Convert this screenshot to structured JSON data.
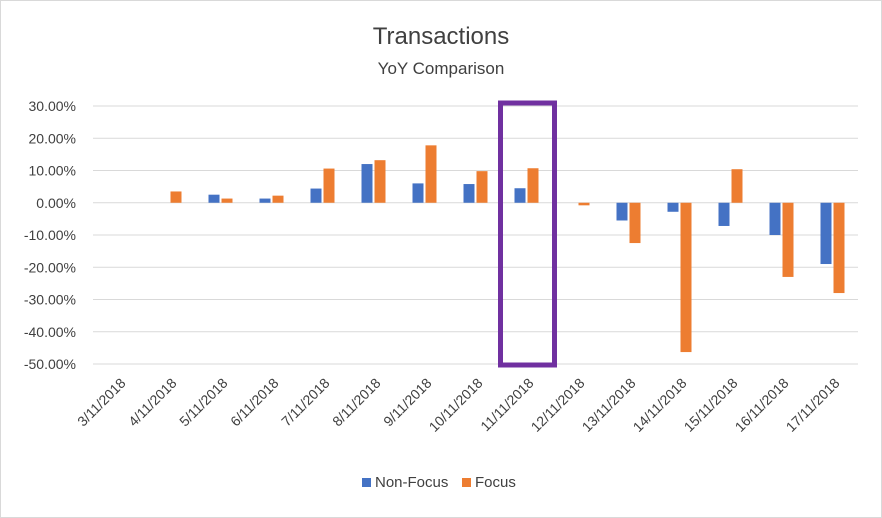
{
  "chart_data": {
    "type": "bar",
    "title": "Transactions",
    "subtitle": "YoY Comparison",
    "categories": [
      "3/11/2018",
      "4/11/2018",
      "5/11/2018",
      "6/11/2018",
      "7/11/2018",
      "8/11/2018",
      "9/11/2018",
      "10/11/2018",
      "11/11/2018",
      "12/11/2018",
      "13/11/2018",
      "14/11/2018",
      "15/11/2018",
      "16/11/2018",
      "17/11/2018"
    ],
    "series": [
      {
        "name": "Non-Focus",
        "color": "#4472c4",
        "values": [
          0,
          0,
          2.5,
          1.3,
          4.4,
          12.0,
          6.0,
          5.8,
          4.5,
          0,
          -5.5,
          -2.8,
          -7.2,
          -10.0,
          -19.0
        ]
      },
      {
        "name": "Focus",
        "color": "#ed7d31",
        "values": [
          0,
          3.5,
          1.3,
          2.2,
          10.6,
          13.2,
          17.8,
          9.8,
          10.7,
          -0.8,
          -12.5,
          -46.3,
          10.4,
          -23.0,
          -28.0
        ]
      }
    ],
    "yticks": [
      30,
      20,
      10,
      0,
      -10,
      -20,
      -30,
      -40,
      -50
    ],
    "ytick_labels": [
      "30.00%",
      "20.00%",
      "10.00%",
      "0.00%",
      "-10.00%",
      "-20.00%",
      "-30.00%",
      "-40.00%",
      "-50.00%"
    ],
    "ylim": [
      -50,
      30
    ],
    "grid": true,
    "legend_position": "bottom",
    "highlight": {
      "category": "11/11/2018",
      "color": "#7030a0"
    }
  }
}
